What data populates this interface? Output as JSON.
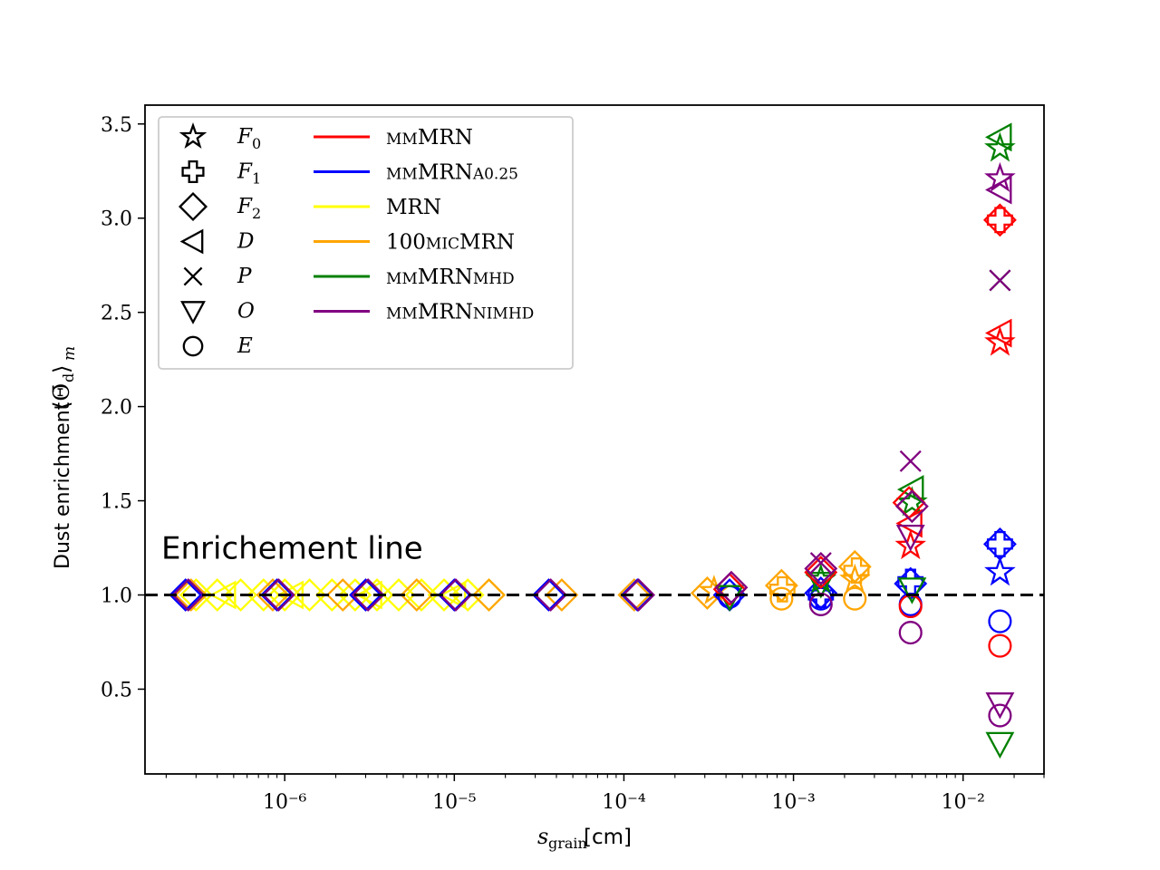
{
  "chart_data": {
    "type": "scatter",
    "xlabel": "s_grain [cm]",
    "ylabel": "Dust enrichment ⟨Θ̄d⟩m",
    "x_scale": "log",
    "xlim": [
      1.5e-07,
      0.03
    ],
    "ylim": [
      0.05,
      3.6
    ],
    "x_ticks": [
      {
        "value": 1e-06,
        "label": "10⁻⁶"
      },
      {
        "value": 1e-05,
        "label": "10⁻⁵"
      },
      {
        "value": 0.0001,
        "label": "10⁻⁴"
      },
      {
        "value": 0.001,
        "label": "10⁻³"
      },
      {
        "value": 0.01,
        "label": "10⁻²"
      }
    ],
    "y_ticks": [
      {
        "value": 0.5,
        "label": "0.5"
      },
      {
        "value": 1.0,
        "label": "1.0"
      },
      {
        "value": 1.5,
        "label": "1.5"
      },
      {
        "value": 2.0,
        "label": "2.0"
      },
      {
        "value": 2.5,
        "label": "2.5"
      },
      {
        "value": 3.0,
        "label": "3.0"
      },
      {
        "value": 3.5,
        "label": "3.5"
      }
    ],
    "reference_line": {
      "y": 1.0,
      "style": "dashed",
      "label": "Enrichement line"
    },
    "grid": false,
    "legend_placement": "top-left",
    "marker_legend": [
      {
        "marker": "star",
        "label": "F",
        "sub": "0"
      },
      {
        "marker": "plus",
        "label": "F",
        "sub": "1"
      },
      {
        "marker": "diamond",
        "label": "F",
        "sub": "2"
      },
      {
        "marker": "triangle-left",
        "label": "D",
        "sub": ""
      },
      {
        "marker": "x",
        "label": "P",
        "sub": ""
      },
      {
        "marker": "triangle-down",
        "label": "O",
        "sub": ""
      },
      {
        "marker": "circle",
        "label": "E",
        "sub": ""
      }
    ],
    "series_legend": [
      {
        "color": "#ff0000",
        "small": "mm",
        "main": "MRN",
        "small2": ""
      },
      {
        "color": "#0000ff",
        "small": "mm",
        "main": "MRN",
        "small2": "a0.25"
      },
      {
        "color": "#ffff00",
        "small": "",
        "main": "MRN",
        "small2": ""
      },
      {
        "color": "#ffa500",
        "small": "",
        "main": "100",
        "small2": "mic",
        "main2": "MRN"
      },
      {
        "color": "#008000",
        "small": "mm",
        "main": "MRN",
        "small2": "mhd"
      },
      {
        "color": "#800080",
        "small": "mm",
        "main": "MRN",
        "small2": "nimhd"
      }
    ],
    "series": [
      {
        "color": "#ffff00",
        "points": [
          {
            "x": 3e-07,
            "y": 1.0,
            "m": "diamond"
          },
          {
            "x": 4e-07,
            "y": 1.0,
            "m": "diamond"
          },
          {
            "x": 5.5e-07,
            "y": 1.0,
            "m": "diamond"
          },
          {
            "x": 7.5e-07,
            "y": 1.0,
            "m": "diamond"
          },
          {
            "x": 1e-06,
            "y": 1.0,
            "m": "diamond"
          },
          {
            "x": 1.4e-06,
            "y": 1.0,
            "m": "diamond"
          },
          {
            "x": 1.9e-06,
            "y": 1.0,
            "m": "diamond"
          },
          {
            "x": 2.6e-06,
            "y": 1.0,
            "m": "diamond"
          },
          {
            "x": 3.5e-06,
            "y": 1.0,
            "m": "diamond"
          },
          {
            "x": 4.7e-06,
            "y": 1.0,
            "m": "diamond"
          },
          {
            "x": 6.4e-06,
            "y": 1.0,
            "m": "diamond"
          },
          {
            "x": 8.7e-06,
            "y": 1.0,
            "m": "diamond"
          },
          {
            "x": 1.2e-05,
            "y": 1.0,
            "m": "diamond"
          },
          {
            "x": 1.6e-05,
            "y": 1.0,
            "m": "diamond"
          },
          {
            "x": 4.4e-07,
            "y": 1.0,
            "m": "triangle-left"
          },
          {
            "x": 1.1e-06,
            "y": 1.0,
            "m": "triangle-left"
          },
          {
            "x": 3.2e-06,
            "y": 1.0,
            "m": "triangle-left"
          },
          {
            "x": 1e-05,
            "y": 1.0,
            "m": "triangle-left"
          }
        ]
      },
      {
        "color": "#ffa500",
        "points": [
          {
            "x": 2.8e-07,
            "y": 1.0,
            "m": "diamond"
          },
          {
            "x": 8.5e-07,
            "y": 1.0,
            "m": "diamond"
          },
          {
            "x": 2.2e-06,
            "y": 1.0,
            "m": "diamond"
          },
          {
            "x": 6e-06,
            "y": 1.0,
            "m": "diamond"
          },
          {
            "x": 1.6e-05,
            "y": 1.0,
            "m": "diamond"
          },
          {
            "x": 4.3e-05,
            "y": 1.0,
            "m": "diamond"
          },
          {
            "x": 0.000115,
            "y": 1.0,
            "m": "diamond"
          },
          {
            "x": 0.00031,
            "y": 1.01,
            "m": "diamond"
          },
          {
            "x": 0.00034,
            "y": 1.02,
            "m": "star"
          },
          {
            "x": 0.00085,
            "y": 1.05,
            "m": "diamond"
          },
          {
            "x": 0.00086,
            "y": 1.03,
            "m": "plus"
          },
          {
            "x": 0.00085,
            "y": 0.98,
            "m": "circle"
          },
          {
            "x": 0.0023,
            "y": 1.15,
            "m": "diamond"
          },
          {
            "x": 0.00235,
            "y": 1.13,
            "m": "plus"
          },
          {
            "x": 0.0023,
            "y": 1.08,
            "m": "star"
          },
          {
            "x": 0.0023,
            "y": 0.98,
            "m": "circle"
          }
        ]
      },
      {
        "color": "#0000ff",
        "points": [
          {
            "x": 2.6e-07,
            "y": 1.0,
            "m": "diamond"
          },
          {
            "x": 9e-07,
            "y": 1.0,
            "m": "diamond"
          },
          {
            "x": 3e-06,
            "y": 1.0,
            "m": "diamond"
          },
          {
            "x": 1e-05,
            "y": 1.0,
            "m": "diamond"
          },
          {
            "x": 3.6e-05,
            "y": 1.0,
            "m": "diamond"
          },
          {
            "x": 0.00012,
            "y": 1.0,
            "m": "diamond"
          },
          {
            "x": 0.00042,
            "y": 1.0,
            "m": "diamond"
          },
          {
            "x": 0.00042,
            "y": 0.99,
            "m": "circle"
          },
          {
            "x": 0.00145,
            "y": 1.01,
            "m": "diamond"
          },
          {
            "x": 0.00145,
            "y": 1.0,
            "m": "plus"
          },
          {
            "x": 0.00145,
            "y": 0.98,
            "m": "circle"
          },
          {
            "x": 0.0049,
            "y": 1.06,
            "m": "diamond"
          },
          {
            "x": 0.0049,
            "y": 1.07,
            "m": "plus"
          },
          {
            "x": 0.0049,
            "y": 0.95,
            "m": "circle"
          },
          {
            "x": 0.0165,
            "y": 1.27,
            "m": "diamond"
          },
          {
            "x": 0.0165,
            "y": 1.27,
            "m": "plus"
          },
          {
            "x": 0.0165,
            "y": 1.12,
            "m": "star"
          },
          {
            "x": 0.0165,
            "y": 0.86,
            "m": "circle"
          }
        ]
      },
      {
        "color": "#008000",
        "points": [
          {
            "x": 0.00042,
            "y": 0.99,
            "m": "triangle-down"
          },
          {
            "x": 0.00145,
            "y": 1.06,
            "m": "triangle-down"
          },
          {
            "x": 0.00145,
            "y": 1.08,
            "m": "star"
          },
          {
            "x": 0.005,
            "y": 1.56,
            "m": "triangle-left"
          },
          {
            "x": 0.005,
            "y": 1.49,
            "m": "star"
          },
          {
            "x": 0.005,
            "y": 1.03,
            "m": "triangle-down"
          },
          {
            "x": 0.0165,
            "y": 3.43,
            "m": "triangle-left"
          },
          {
            "x": 0.0165,
            "y": 3.37,
            "m": "star"
          },
          {
            "x": 0.0165,
            "y": 2.67,
            "m": "x"
          },
          {
            "x": 0.0165,
            "y": 0.21,
            "m": "triangle-down"
          }
        ]
      },
      {
        "color": "#ff0000",
        "points": [
          {
            "x": 0.00042,
            "y": 1.03,
            "m": "diamond"
          },
          {
            "x": 0.00145,
            "y": 1.12,
            "m": "diamond"
          },
          {
            "x": 0.0048,
            "y": 1.49,
            "m": "diamond"
          },
          {
            "x": 0.0049,
            "y": 1.38,
            "m": "triangle-left"
          },
          {
            "x": 0.0049,
            "y": 1.26,
            "m": "star"
          },
          {
            "x": 0.0049,
            "y": 0.94,
            "m": "circle"
          },
          {
            "x": 0.0165,
            "y": 2.99,
            "m": "diamond"
          },
          {
            "x": 0.0165,
            "y": 2.99,
            "m": "plus"
          },
          {
            "x": 0.0165,
            "y": 2.39,
            "m": "triangle-left"
          },
          {
            "x": 0.0165,
            "y": 2.34,
            "m": "star"
          },
          {
            "x": 0.0165,
            "y": 0.73,
            "m": "circle"
          }
        ]
      },
      {
        "color": "#800080",
        "points": [
          {
            "x": 2.7e-07,
            "y": 1.0,
            "m": "diamond"
          },
          {
            "x": 9.2e-07,
            "y": 1.0,
            "m": "diamond"
          },
          {
            "x": 3.1e-06,
            "y": 1.0,
            "m": "diamond"
          },
          {
            "x": 1.02e-05,
            "y": 1.0,
            "m": "diamond"
          },
          {
            "x": 3.7e-05,
            "y": 1.0,
            "m": "diamond"
          },
          {
            "x": 0.000122,
            "y": 1.0,
            "m": "diamond"
          },
          {
            "x": 0.00043,
            "y": 1.04,
            "m": "diamond"
          },
          {
            "x": 0.00145,
            "y": 1.17,
            "m": "x"
          },
          {
            "x": 0.00145,
            "y": 1.14,
            "m": "diamond"
          },
          {
            "x": 0.00145,
            "y": 0.95,
            "m": "circle"
          },
          {
            "x": 0.0049,
            "y": 1.71,
            "m": "x"
          },
          {
            "x": 0.005,
            "y": 1.47,
            "m": "diamond"
          },
          {
            "x": 0.0049,
            "y": 1.31,
            "m": "triangle-down"
          },
          {
            "x": 0.0049,
            "y": 0.8,
            "m": "circle"
          },
          {
            "x": 0.0165,
            "y": 3.21,
            "m": "star"
          },
          {
            "x": 0.0165,
            "y": 3.15,
            "m": "triangle-left"
          },
          {
            "x": 0.0165,
            "y": 2.67,
            "m": "x"
          },
          {
            "x": 0.0165,
            "y": 0.42,
            "m": "triangle-down"
          },
          {
            "x": 0.0165,
            "y": 0.36,
            "m": "circle"
          }
        ]
      }
    ]
  }
}
